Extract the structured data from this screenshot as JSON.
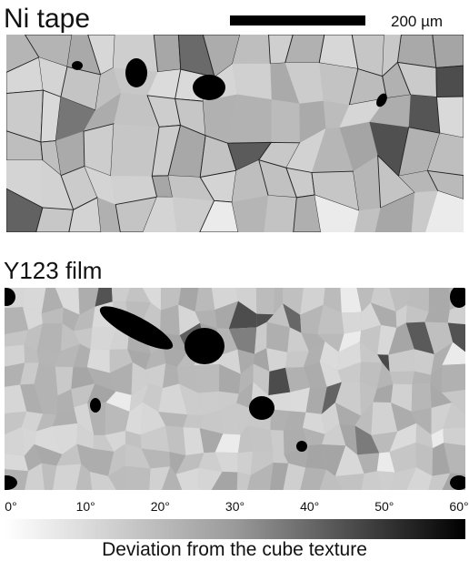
{
  "panels": [
    {
      "title": "Ni tape",
      "scale_bar": "200 µm"
    },
    {
      "title": "Y123 film"
    }
  ],
  "colorbar": {
    "range": [
      0,
      60
    ],
    "ticks": [
      {
        "value": 0,
        "label": "0°"
      },
      {
        "value": 10,
        "label": "10°"
      },
      {
        "value": 20,
        "label": "20°"
      },
      {
        "value": 30,
        "label": "30°"
      },
      {
        "value": 40,
        "label": "40°"
      },
      {
        "value": 50,
        "label": "50°"
      },
      {
        "value": 60,
        "label": "60°"
      }
    ],
    "label": "Deviation from the cube texture"
  }
}
